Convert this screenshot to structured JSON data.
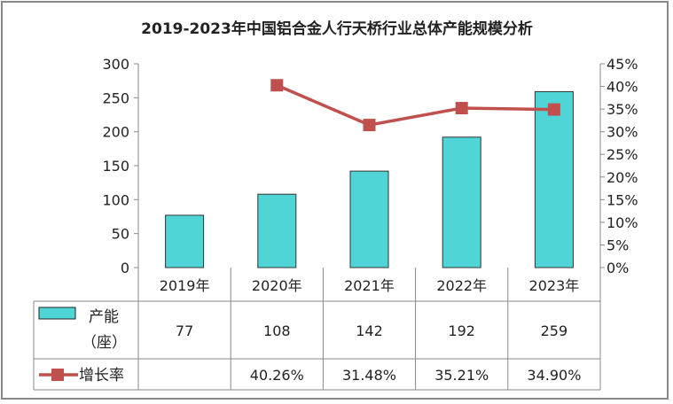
{
  "chart_data": {
    "type": "bar+line",
    "title": "2019-2023年中国铝合金人行天桥行业总体产能规模分析",
    "categories": [
      "2019年",
      "2020年",
      "2021年",
      "2022年",
      "2023年"
    ],
    "series": [
      {
        "name": "产能（座）",
        "type": "bar",
        "axis": "left",
        "values": [
          77,
          108,
          142,
          192,
          259
        ],
        "labels": [
          "77",
          "108",
          "142",
          "192",
          "259"
        ],
        "color": "#4fd5d5"
      },
      {
        "name": "增长率",
        "type": "line",
        "axis": "right",
        "values": [
          null,
          40.26,
          31.48,
          35.21,
          34.9
        ],
        "labels": [
          "",
          "40.26%",
          "31.48%",
          "35.21%",
          "34.90%"
        ],
        "color": "#c0504d"
      }
    ],
    "left_axis": {
      "ylim": [
        0,
        300
      ],
      "ticks": [
        "0",
        "50",
        "100",
        "150",
        "200",
        "250",
        "300"
      ]
    },
    "right_axis": {
      "ylim": [
        0,
        45
      ],
      "ticks": [
        "0%",
        "5%",
        "10%",
        "15%",
        "20%",
        "25%",
        "30%",
        "35%",
        "40%",
        "45%"
      ]
    },
    "grid": false,
    "legend": "data-table"
  }
}
